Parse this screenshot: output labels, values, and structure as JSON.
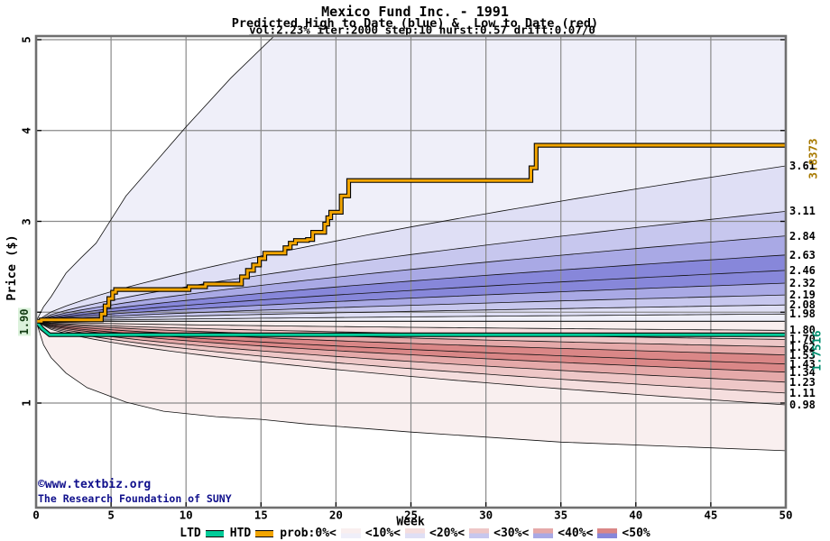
{
  "title": "Mexico Fund Inc. - 1991",
  "subtitle": "Predicted High to Date (blue) &  Low to Date (red)",
  "params_line": "vol:2.23% iter:2000 step:10 hurst:0.57 drift:0.07/0",
  "watermark": {
    "line1": "©www.textbiz.org",
    "line2": "The Research Foundation of SUNY"
  },
  "chart_data": {
    "type": "area",
    "title": "Mexico Fund Inc. - 1991",
    "x_axis": {
      "label": "Week",
      "ticks": [
        0,
        5,
        10,
        15,
        20,
        25,
        30,
        35,
        40,
        45,
        50
      ],
      "range": [
        0,
        50
      ]
    },
    "y_axis": {
      "label": "Price ($)",
      "ticks": [
        1,
        2,
        3,
        4,
        5
      ],
      "range": [
        -0.15,
        5.07
      ]
    },
    "grid": true,
    "start_price": 1.9,
    "start_price_label": "1.90",
    "htd": {
      "name": "HTD",
      "color": "#f2a500",
      "final_value": 3.8373,
      "final_value_label": "3.8373",
      "steps": [
        [
          0,
          1.9
        ],
        [
          0.35,
          1.915
        ],
        [
          4.35,
          1.98
        ],
        [
          4.6,
          2.07
        ],
        [
          4.85,
          2.15
        ],
        [
          5.1,
          2.22
        ],
        [
          5.3,
          2.25
        ],
        [
          10.2,
          2.28
        ],
        [
          11.3,
          2.31
        ],
        [
          13.7,
          2.39
        ],
        [
          14.1,
          2.46
        ],
        [
          14.5,
          2.52
        ],
        [
          14.9,
          2.59
        ],
        [
          15.25,
          2.65
        ],
        [
          16.6,
          2.71
        ],
        [
          16.95,
          2.76
        ],
        [
          17.3,
          2.79
        ],
        [
          18.1,
          2.8
        ],
        [
          18.45,
          2.88
        ],
        [
          19.25,
          2.97
        ],
        [
          19.45,
          3.04
        ],
        [
          19.65,
          3.1
        ],
        [
          20.35,
          3.28
        ],
        [
          20.85,
          3.45
        ],
        [
          33.0,
          3.59
        ],
        [
          33.35,
          3.8373
        ]
      ]
    },
    "ltd": {
      "name": "LTD",
      "color": "#00cc99",
      "final_value": 1.7516,
      "final_value_label": "1.7516",
      "points": [
        [
          0,
          1.9
        ],
        [
          0.4,
          1.82
        ],
        [
          0.9,
          1.7516
        ],
        [
          50,
          1.7516
        ]
      ]
    },
    "high_fan": {
      "quantiles_week50": [
        3.61,
        3.11,
        2.84,
        2.63,
        2.46,
        2.32,
        2.19,
        2.08,
        1.98
      ],
      "floor": 1.9,
      "shape_exponent": 0.72,
      "envelope_points": [
        [
          0,
          1.9
        ],
        [
          0.5,
          2.06
        ],
        [
          1,
          2.17
        ],
        [
          2,
          2.43
        ],
        [
          3,
          2.6
        ],
        [
          4,
          2.76
        ],
        [
          6,
          3.28
        ],
        [
          8,
          3.66
        ],
        [
          10,
          4.04
        ],
        [
          13,
          4.58
        ],
        [
          16,
          5.06
        ],
        [
          17.5,
          5.4
        ],
        [
          50,
          12
        ]
      ]
    },
    "low_fan": {
      "quantiles_week50": [
        1.8,
        1.7,
        1.62,
        1.53,
        1.43,
        1.34,
        1.23,
        1.11,
        0.98
      ],
      "ceiling": 1.9,
      "shape_exponent": 0.6,
      "envelope_points": [
        [
          0,
          1.9
        ],
        [
          0.5,
          1.64
        ],
        [
          1,
          1.5
        ],
        [
          2,
          1.33
        ],
        [
          3.4,
          1.17
        ],
        [
          6,
          1.01
        ],
        [
          8.5,
          0.91
        ],
        [
          12,
          0.85
        ],
        [
          15,
          0.82
        ],
        [
          18,
          0.77
        ],
        [
          25,
          0.68
        ],
        [
          35,
          0.57
        ],
        [
          50,
          0.475
        ]
      ]
    },
    "palette": {
      "blue": [
        "#efeff9",
        "#dfdff5",
        "#c7c7ee",
        "#a9a9e5",
        "#8787da"
      ],
      "red": [
        "#f9efef",
        "#f5dede",
        "#eec7c7",
        "#e5a9a9",
        "#da8787"
      ],
      "grid": "#8a8a8a",
      "frame": "#6f6f6f",
      "boundary": "#101010"
    },
    "legend": {
      "ltd_label": "LTD",
      "htd_label": "HTD",
      "prob_labels": [
        "prob:0%<",
        "<10%<",
        "<20%<",
        "<30%<",
        "<40%<",
        "<50%"
      ]
    }
  }
}
